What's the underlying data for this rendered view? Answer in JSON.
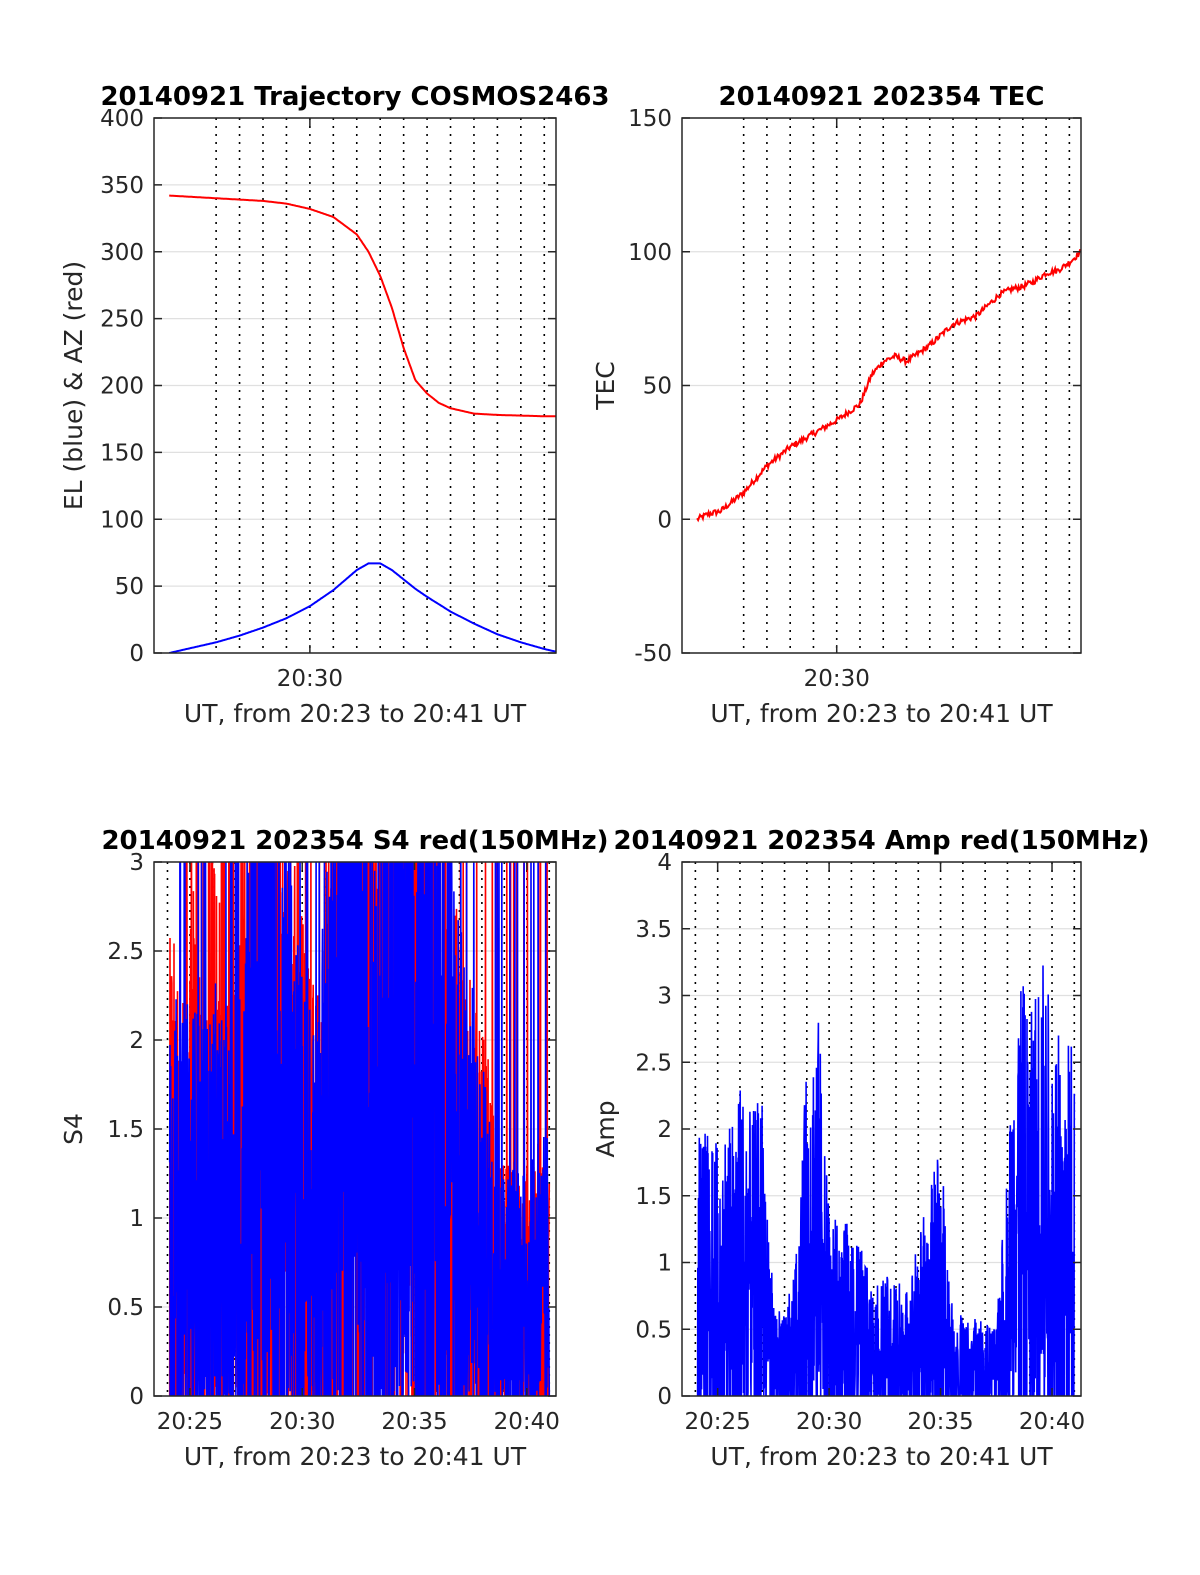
{
  "colors": {
    "red": "#ff0000",
    "blue": "#0000ff",
    "axis": "#262626",
    "grid": "#e0e0e0"
  },
  "chart_data": [
    {
      "id": "trajectory",
      "type": "line",
      "title": "20140921 Trajectory COSMOS2463",
      "xlabel": "UT, from 20:23 to 20:41 UT",
      "ylabel": "EL (blue) & AZ (red)",
      "xlim": [
        20.35,
        37.5
      ],
      "ylim": [
        0,
        400
      ],
      "yticks": [
        0,
        50,
        100,
        150,
        200,
        250,
        300,
        350,
        400
      ],
      "xticks": [
        {
          "value": 27,
          "label": "20:30"
        }
      ],
      "grid": true,
      "series": [
        {
          "color": "red",
          "x": [
            21,
            22,
            23,
            24,
            25,
            26,
            27,
            28,
            29,
            29.5,
            30,
            30.5,
            31,
            31.5,
            32,
            32.5,
            33,
            33.5,
            34,
            35,
            36,
            37,
            37.5
          ],
          "y": [
            342,
            341,
            340,
            339,
            338,
            336,
            332,
            326,
            313,
            300,
            282,
            258,
            228,
            204,
            194,
            187,
            183,
            181,
            179,
            178,
            177.5,
            177,
            177
          ]
        },
        {
          "color": "blue",
          "x": [
            21,
            22,
            23,
            24,
            25,
            26,
            27,
            28,
            29,
            29.5,
            30,
            30.5,
            31,
            31.5,
            32,
            33,
            34,
            35,
            36,
            37,
            37.5
          ],
          "y": [
            0,
            4,
            8,
            13,
            19,
            26,
            35,
            47,
            62,
            67,
            67,
            62,
            55,
            48,
            42,
            31,
            22,
            14,
            8,
            3,
            1
          ]
        }
      ]
    },
    {
      "id": "tec",
      "type": "line",
      "title": "20140921 202354 TEC",
      "xlabel": "UT, from 20:23 to 20:41 UT",
      "ylabel": "TEC",
      "xlim": [
        20.35,
        37.5
      ],
      "ylim": [
        -50,
        150
      ],
      "yticks": [
        -50,
        0,
        50,
        100,
        150
      ],
      "xticks": [
        {
          "value": 27,
          "label": "20:30"
        }
      ],
      "grid": true,
      "series": [
        {
          "color": "red",
          "x": [
            21,
            21.5,
            22,
            23,
            24,
            25,
            26,
            27,
            27.5,
            28,
            28.5,
            29,
            29.5,
            30,
            31,
            32,
            33,
            34,
            34.5,
            35,
            35.5,
            36,
            36.5,
            37,
            37.5
          ],
          "y": [
            0,
            2,
            3,
            10,
            20,
            27,
            32,
            37,
            40,
            43,
            54,
            59,
            61,
            59,
            65,
            73,
            76,
            84,
            86,
            87,
            89,
            92,
            93,
            96,
            100
          ]
        }
      ]
    },
    {
      "id": "s4",
      "type": "line",
      "title": "20140921 202354 S4 red(150MHz)",
      "xlabel": "UT, from 20:23 to 20:41 UT",
      "ylabel": "S4",
      "xlim": [
        23.4,
        41.3
      ],
      "ylim": [
        0,
        3
      ],
      "yticks": [
        0,
        0.5,
        1,
        1.5,
        2,
        2.5,
        3
      ],
      "xticks": [
        {
          "value": 25,
          "label": "20:25"
        },
        {
          "value": 30,
          "label": "20:30"
        },
        {
          "value": 35,
          "label": "20:35"
        },
        {
          "value": 40,
          "label": "20:40"
        }
      ],
      "grid": true,
      "series": [
        {
          "color": "red",
          "x": [
            24.1,
            24.6,
            25.1,
            25.6,
            26.1,
            26.6,
            27.1,
            27.6,
            28.1,
            28.6,
            29.1,
            29.6,
            30.1,
            30.6,
            31.1,
            31.6,
            32.1,
            32.6,
            33.1,
            33.6,
            34.1,
            34.6,
            35.1,
            35.6,
            36.1,
            36.6,
            37.1,
            37.6,
            38.1,
            38.6,
            39.1,
            39.6,
            40.1,
            40.6,
            41.0
          ],
          "y": [
            1.1,
            0.9,
            1.2,
            0.8,
            1.3,
            0.9,
            1.0,
            1.5,
            1.6,
            1.9,
            1.4,
            1.2,
            1.0,
            0.9,
            1.1,
            1.5,
            1.7,
            2.0,
            1.8,
            1.6,
            1.7,
            2.1,
            2.4,
            2.0,
            1.5,
            1.2,
            1.0,
            0.9,
            0.8,
            0.6,
            0.5,
            0.5,
            0.5,
            0.6,
            0.6
          ]
        },
        {
          "color": "blue",
          "x": [
            24.1,
            24.6,
            25.1,
            25.6,
            26.1,
            26.6,
            27.1,
            27.6,
            28.1,
            28.6,
            29.1,
            29.6,
            30.1,
            30.6,
            31.1,
            31.6,
            32.1,
            32.6,
            33.1,
            33.6,
            34.1,
            34.6,
            35.1,
            35.6,
            36.1,
            36.6,
            37.1,
            37.6,
            38.1,
            38.6,
            39.1,
            39.6,
            40.1,
            40.6,
            41.0
          ],
          "y": [
            1.0,
            0.8,
            0.9,
            0.8,
            0.9,
            0.8,
            0.8,
            1.2,
            1.8,
            1.5,
            1.3,
            1.1,
            0.9,
            0.8,
            1.3,
            1.6,
            1.7,
            1.4,
            1.5,
            1.6,
            1.8,
            1.4,
            1.2,
            1.7,
            1.3,
            1.5,
            1.0,
            0.9,
            0.7,
            0.5,
            0.5,
            0.55,
            0.5,
            0.55,
            0.6
          ]
        }
      ]
    },
    {
      "id": "amp",
      "type": "line",
      "title": "20140921 202354 Amp red(150MHz)",
      "xlabel": "UT, from 20:23 to 20:41 UT",
      "ylabel": "Amp",
      "xlim": [
        23.4,
        41.3
      ],
      "ylim": [
        0,
        4
      ],
      "yticks": [
        0,
        0.5,
        1,
        1.5,
        2,
        2.5,
        3,
        3.5,
        4
      ],
      "xticks": [
        {
          "value": 25,
          "label": "20:25"
        },
        {
          "value": 30,
          "label": "20:30"
        },
        {
          "value": 35,
          "label": "20:35"
        },
        {
          "value": 40,
          "label": "20:40"
        }
      ],
      "grid": true,
      "series": [
        {
          "color": "blue",
          "x": [
            24.1,
            24.5,
            25,
            25.5,
            26,
            26.5,
            27,
            27.5,
            28,
            28.5,
            29,
            29.5,
            30,
            30.5,
            31,
            31.5,
            32,
            32.5,
            33,
            33.5,
            34,
            34.5,
            35,
            35.5,
            36,
            36.5,
            37,
            37.5,
            38,
            38.5,
            39,
            39.5,
            40,
            40.5,
            41
          ],
          "y": [
            2.15,
            2.0,
            1.9,
            2.1,
            2.4,
            2.1,
            2.3,
            0.7,
            0.6,
            1.0,
            2.5,
            2.9,
            1.5,
            1.2,
            1.4,
            1.1,
            0.8,
            0.9,
            0.9,
            0.8,
            1.2,
            1.5,
            2.0,
            0.7,
            0.6,
            0.6,
            0.55,
            0.5,
            1.8,
            3.3,
            2.8,
            3.4,
            2.9,
            2.6,
            2.8
          ]
        }
      ]
    }
  ]
}
